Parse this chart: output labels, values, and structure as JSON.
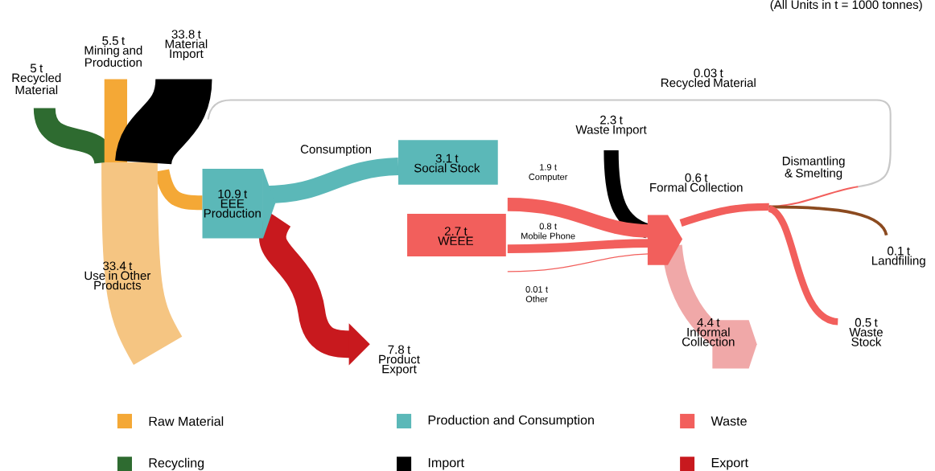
{
  "chart_data": {
    "type": "other",
    "annotations": [
      "(All Units in t = 1000 tonnes)"
    ],
    "categories": [
      "Recycled Material",
      "Mining and Production",
      "Material Import",
      "Use in Other Products",
      "EEE Production",
      "Consumption",
      "Social Stock",
      "WEEE",
      "Product Export",
      "Waste Import",
      "Computer",
      "Mobile Phone",
      "Other",
      "Formal Collection",
      "Informal Collection",
      "Dismantling & Smelting",
      "Recycled Material",
      "Landfilling",
      "Waste Stock"
    ],
    "colors": [
      "#2e6b30",
      "#f4a836",
      "#000000",
      "#f5c582",
      "#5bb8b8",
      "#5bb8b8",
      "#5bb8b8",
      "#f25f5c",
      "#c8191e",
      "#000000",
      "#f25f5c",
      "#f25f5c",
      "#f25f5c",
      "#f25f5c",
      "#f0a8a8",
      "#f25f5c",
      "#c8c8c8",
      "#8b4a1f",
      "#f25f5c"
    ],
    "series": [
      {
        "name": "Raw Material",
        "color": "#f4a836",
        "values": [
          null,
          5.5,
          null,
          33.4,
          null,
          null,
          null,
          null,
          null,
          null,
          null,
          null,
          null,
          null,
          null,
          null,
          null,
          null,
          null
        ],
        "value_labels": [
          null,
          "5.5 t",
          null,
          "33.4 t",
          null,
          null,
          null,
          null,
          null,
          null,
          null,
          null,
          null,
          null,
          null,
          null,
          null,
          null,
          null
        ]
      },
      {
        "name": "Production and Consumption",
        "color": "#5bb8b8",
        "values": [
          null,
          null,
          null,
          null,
          10.9,
          null,
          3.1,
          null,
          null,
          null,
          null,
          null,
          null,
          null,
          null,
          null,
          null,
          null,
          null
        ],
        "value_labels": [
          null,
          null,
          null,
          null,
          "10.9 t",
          null,
          "3.1 t",
          null,
          null,
          null,
          null,
          null,
          null,
          null,
          null,
          null,
          null,
          null,
          null
        ]
      },
      {
        "name": "Waste",
        "color": "#f25f5c",
        "values": [
          null,
          null,
          null,
          null,
          null,
          null,
          null,
          2.7,
          null,
          null,
          1.9,
          0.8,
          0.01,
          0.6,
          4.4,
          null,
          null,
          0.1,
          0.5
        ],
        "value_labels": [
          null,
          null,
          null,
          null,
          null,
          null,
          null,
          "2.7 t",
          null,
          null,
          "1.9  t",
          "0.8  t",
          "0.01 t",
          "0.6 t",
          "4.4 t",
          null,
          null,
          "0.1 t",
          "0.5 t"
        ]
      },
      {
        "name": "Recycling",
        "color": "#2e6b30",
        "values": [
          5,
          null,
          null,
          null,
          null,
          null,
          null,
          null,
          null,
          null,
          null,
          null,
          null,
          null,
          null,
          null,
          0.03,
          null,
          null
        ],
        "value_labels": [
          "5 t",
          null,
          null,
          null,
          null,
          null,
          null,
          null,
          null,
          null,
          null,
          null,
          null,
          null,
          null,
          null,
          "0.03 t",
          null,
          null
        ]
      },
      {
        "name": "Import",
        "color": "#000000",
        "values": [
          null,
          null,
          33.8,
          null,
          null,
          null,
          null,
          null,
          null,
          2.3,
          null,
          null,
          null,
          null,
          null,
          null,
          null,
          null,
          null
        ],
        "value_labels": [
          null,
          null,
          "33.8 t",
          null,
          null,
          null,
          null,
          null,
          null,
          "2.3 t",
          null,
          null,
          null,
          null,
          null,
          null,
          null,
          null,
          null
        ]
      },
      {
        "name": "Export",
        "color": "#c8191e",
        "values": [
          null,
          null,
          null,
          null,
          null,
          null,
          null,
          null,
          7.8,
          null,
          null,
          null,
          null,
          null,
          null,
          null,
          null,
          null,
          null
        ],
        "value_labels": [
          null,
          null,
          null,
          null,
          null,
          null,
          null,
          null,
          "7.8 t",
          null,
          null,
          null,
          null,
          null,
          null,
          null,
          null,
          null,
          null
        ]
      }
    ],
    "legend": "bottom"
  }
}
